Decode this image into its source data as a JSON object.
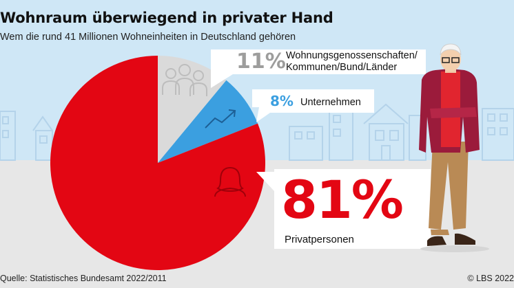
{
  "title": "Wohnraum überwiegend in privater Hand",
  "subtitle": "Wem die rund 41 Millionen Wohneinheiten in Deutschland gehören",
  "source": "Quelle: Statistisches Bundesamt 2022/2011",
  "copyright": "© LBS 2022",
  "colors": {
    "privat": "#e30613",
    "unternehmen": "#3b9fe0",
    "genossenschaften": "#dadada",
    "sky": "#cfe7f6",
    "ground": "#e7e7e7"
  },
  "chart_data": {
    "type": "pie",
    "title": "Wohnraum überwiegend in privater Hand",
    "subtitle": "Wem die rund 41 Millionen Wohneinheiten in Deutschland gehören",
    "slices": [
      {
        "label": "Wohnungsgenossenschaften/\nKommunen/Bund/Länder",
        "value": 11,
        "value_label": "11%",
        "color": "#dadada",
        "icon": "people-group-icon"
      },
      {
        "label": "Unternehmen",
        "value": 8,
        "value_label": "8%",
        "color": "#3b9fe0",
        "icon": "trend-arrow-icon"
      },
      {
        "label": "Privatpersonen",
        "value": 81,
        "value_label": "81%",
        "color": "#e30613",
        "icon": "person-icon"
      }
    ]
  }
}
